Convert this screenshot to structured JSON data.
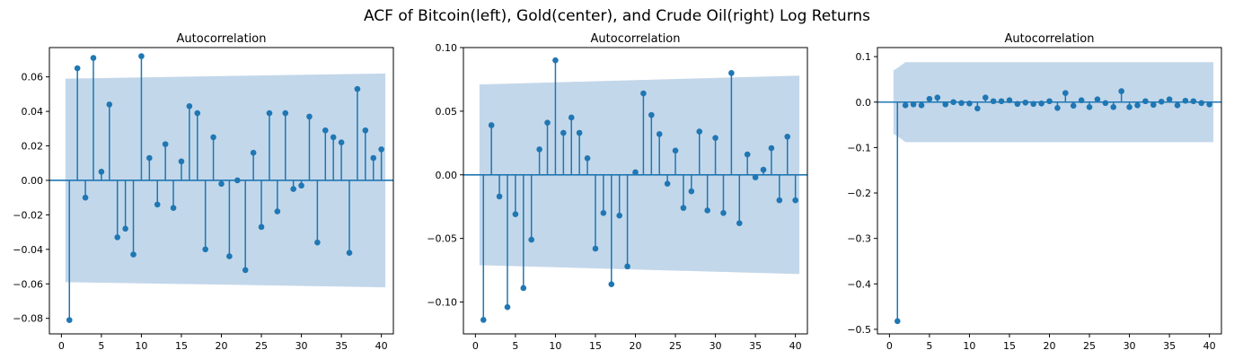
{
  "figure": {
    "suptitle": "ACF of Bitcoin(left), Gold(center), and Crude Oil(right) Log Returns"
  },
  "chart_data": [
    {
      "type": "stem",
      "title": "Autocorrelation",
      "xlim": [
        -1.5,
        41.5
      ],
      "ylim": [
        -0.089,
        0.077
      ],
      "xticks": [
        0,
        5,
        10,
        15,
        20,
        25,
        30,
        35,
        40
      ],
      "xtick_labels": [
        "0",
        "5",
        "10",
        "15",
        "20",
        "25",
        "30",
        "35",
        "40"
      ],
      "yticks": [
        -0.08,
        -0.06,
        -0.04,
        -0.02,
        0.0,
        0.02,
        0.04,
        0.06
      ],
      "ytick_labels": [
        "−0.08",
        "−0.06",
        "−0.04",
        "−0.02",
        "0.00",
        "0.02",
        "0.04",
        "0.06"
      ],
      "lags": [
        1,
        2,
        3,
        4,
        5,
        6,
        7,
        8,
        9,
        10,
        11,
        12,
        13,
        14,
        15,
        16,
        17,
        18,
        19,
        20,
        21,
        22,
        23,
        24,
        25,
        26,
        27,
        28,
        29,
        30,
        31,
        32,
        33,
        34,
        35,
        36,
        37,
        38,
        39,
        40
      ],
      "values": [
        -0.081,
        0.065,
        -0.01,
        0.071,
        0.005,
        0.044,
        -0.033,
        -0.028,
        -0.043,
        0.072,
        0.013,
        -0.014,
        0.021,
        -0.016,
        0.011,
        0.043,
        0.039,
        -0.04,
        0.025,
        -0.002,
        -0.044,
        0.0,
        -0.052,
        0.016,
        -0.027,
        0.039,
        -0.018,
        0.039,
        -0.005,
        -0.003,
        0.037,
        -0.036,
        0.029,
        0.025,
        0.022,
        -0.042,
        0.053,
        0.029,
        0.013,
        0.018
      ],
      "confidence_band": {
        "lags": [
          0.5,
          40.5
        ],
        "upper": [
          0.059,
          0.062
        ],
        "lower": [
          -0.059,
          -0.062
        ]
      }
    },
    {
      "type": "stem",
      "title": "Autocorrelation",
      "xlim": [
        -1.5,
        41.5
      ],
      "ylim": [
        -0.125,
        0.1
      ],
      "xticks": [
        0,
        5,
        10,
        15,
        20,
        25,
        30,
        35,
        40
      ],
      "xtick_labels": [
        "0",
        "5",
        "10",
        "15",
        "20",
        "25",
        "30",
        "35",
        "40"
      ],
      "yticks": [
        -0.1,
        -0.05,
        0.0,
        0.05,
        0.1
      ],
      "ytick_labels": [
        "−0.10",
        "−0.05",
        "0.00",
        "0.05",
        "0.10"
      ],
      "lags": [
        1,
        2,
        3,
        4,
        5,
        6,
        7,
        8,
        9,
        10,
        11,
        12,
        13,
        14,
        15,
        16,
        17,
        18,
        19,
        20,
        21,
        22,
        23,
        24,
        25,
        26,
        27,
        28,
        29,
        30,
        31,
        32,
        33,
        34,
        35,
        36,
        37,
        38,
        39,
        40
      ],
      "values": [
        -0.114,
        0.039,
        -0.017,
        -0.104,
        -0.031,
        -0.089,
        -0.051,
        0.02,
        0.041,
        0.09,
        0.033,
        0.045,
        0.033,
        0.013,
        -0.058,
        -0.03,
        -0.086,
        -0.032,
        -0.072,
        0.002,
        0.064,
        0.047,
        0.032,
        -0.007,
        0.019,
        -0.026,
        -0.013,
        0.034,
        -0.028,
        0.029,
        -0.03,
        0.08,
        -0.038,
        0.016,
        -0.002,
        0.004,
        0.021,
        -0.02,
        0.03,
        -0.02
      ],
      "confidence_band": {
        "lags": [
          0.5,
          40.5
        ],
        "upper": [
          0.071,
          0.078
        ],
        "lower": [
          -0.071,
          -0.078
        ]
      }
    },
    {
      "type": "stem",
      "title": "Autocorrelation",
      "xlim": [
        -1.5,
        41.5
      ],
      "ylim": [
        -0.51,
        0.12
      ],
      "xticks": [
        0,
        5,
        10,
        15,
        20,
        25,
        30,
        35,
        40
      ],
      "xtick_labels": [
        "0",
        "5",
        "10",
        "15",
        "20",
        "25",
        "30",
        "35",
        "40"
      ],
      "yticks": [
        -0.5,
        -0.4,
        -0.3,
        -0.2,
        -0.1,
        0.0,
        0.1
      ],
      "ytick_labels": [
        "−0.5",
        "−0.4",
        "−0.3",
        "−0.2",
        "−0.1",
        "0.0",
        "0.1"
      ],
      "lags": [
        1,
        2,
        3,
        4,
        5,
        6,
        7,
        8,
        9,
        10,
        11,
        12,
        13,
        14,
        15,
        16,
        17,
        18,
        19,
        20,
        21,
        22,
        23,
        24,
        25,
        26,
        27,
        28,
        29,
        30,
        31,
        32,
        33,
        34,
        35,
        36,
        37,
        38,
        39,
        40
      ],
      "values": [
        -0.482,
        -0.007,
        -0.005,
        -0.007,
        0.007,
        0.01,
        -0.005,
        0.0,
        -0.002,
        -0.003,
        -0.014,
        0.01,
        0.002,
        0.002,
        0.004,
        -0.004,
        -0.001,
        -0.004,
        -0.003,
        0.002,
        -0.013,
        0.02,
        -0.008,
        0.004,
        -0.011,
        0.006,
        -0.002,
        -0.011,
        0.024,
        -0.011,
        -0.007,
        0.002,
        -0.006,
        0.001,
        0.006,
        -0.007,
        0.003,
        0.002,
        -0.002,
        -0.005
      ],
      "confidence_band": {
        "lags": [
          0.5,
          1.0,
          2.0,
          40.5
        ],
        "upper": [
          0.07,
          0.075,
          0.088,
          0.088
        ],
        "lower": [
          -0.07,
          -0.075,
          -0.088,
          -0.088
        ]
      }
    }
  ],
  "colors": {
    "stem": "#1f77b4",
    "band": "#c3d7ea",
    "axis": "#000000"
  }
}
